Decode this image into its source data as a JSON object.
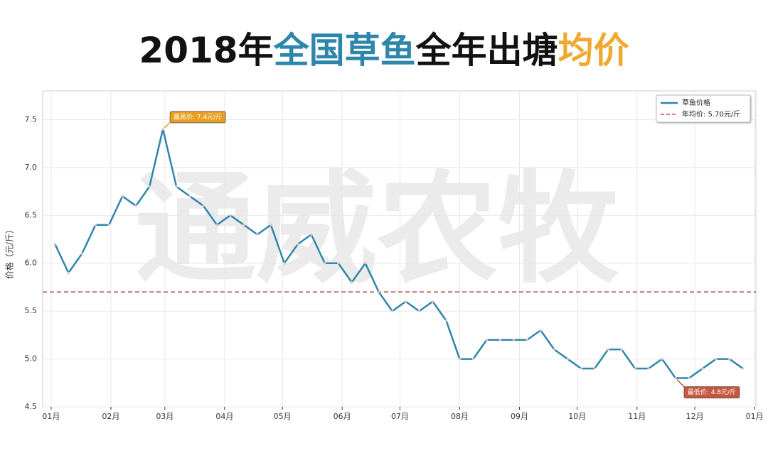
{
  "chart_data": {
    "type": "line",
    "title_parts": [
      "2018年",
      "全国草鱼",
      "全年出塘",
      "均价"
    ],
    "title_colors": [
      "#111111",
      "#2e86ab",
      "#111111",
      "#f0a830"
    ],
    "watermark": "通威农牧",
    "ylabel": "价格（元/斤）",
    "x": [
      2,
      9,
      16,
      23,
      30,
      37,
      44,
      51,
      58,
      65,
      72,
      79,
      86,
      93,
      100,
      107,
      114,
      121,
      128,
      135,
      142,
      149,
      156,
      163,
      170,
      177,
      184,
      191,
      198,
      205,
      212,
      219,
      226,
      233,
      240,
      247,
      254,
      261,
      268,
      275,
      282,
      289,
      296,
      303,
      310,
      317,
      324,
      331,
      338,
      345,
      352,
      359
    ],
    "series": [
      {
        "name": "草鱼价格",
        "color": "#2e86ab",
        "values": [
          6.2,
          5.9,
          6.1,
          6.4,
          6.4,
          6.7,
          6.6,
          6.8,
          7.4,
          6.8,
          6.7,
          6.6,
          6.4,
          6.5,
          6.4,
          6.3,
          6.4,
          6.0,
          6.2,
          6.3,
          6.0,
          6.0,
          5.8,
          6.0,
          5.7,
          5.5,
          5.6,
          5.5,
          5.6,
          5.4,
          5.0,
          5.0,
          5.2,
          5.2,
          5.2,
          5.2,
          5.3,
          5.1,
          5.0,
          4.9,
          4.9,
          5.1,
          5.1,
          4.9,
          4.9,
          5.0,
          4.8,
          4.8,
          4.9,
          5.0,
          5.0,
          4.9
        ]
      }
    ],
    "mean": {
      "value": 5.7,
      "name": "年均价: 5.70元/斤",
      "color": "#c0504d"
    },
    "annotations": {
      "max": "最高价: 7.4元/斤",
      "min": "最低价: 4.8元/斤"
    },
    "xlim": [
      -4.4,
      365.7
    ],
    "xticks": [
      {
        "value": 0,
        "label": "01月"
      },
      {
        "value": 31,
        "label": "02月"
      },
      {
        "value": 59,
        "label": "03月"
      },
      {
        "value": 90,
        "label": "04月"
      },
      {
        "value": 120,
        "label": "05月"
      },
      {
        "value": 151,
        "label": "06月"
      },
      {
        "value": 181,
        "label": "07月"
      },
      {
        "value": 212,
        "label": "08月"
      },
      {
        "value": 243,
        "label": "09月"
      },
      {
        "value": 273,
        "label": "10月"
      },
      {
        "value": 304,
        "label": "11月"
      },
      {
        "value": 334,
        "label": "12月"
      },
      {
        "value": 365,
        "label": "01月"
      }
    ],
    "ylim": [
      4.5,
      7.8
    ],
    "yticks": [
      4.5,
      {
        "value": 5,
        "label": "5.0"
      },
      5.5,
      {
        "value": 6,
        "label": "6.0"
      },
      6.5,
      {
        "value": 7,
        "label": "7.0"
      },
      7.5
    ],
    "grid": true,
    "legend": "upper right"
  }
}
